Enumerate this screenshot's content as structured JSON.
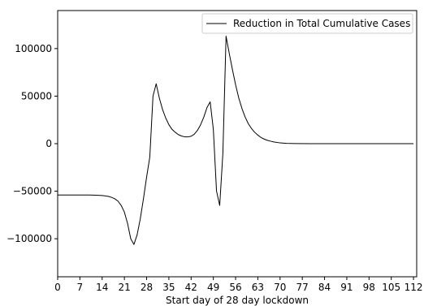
{
  "chart_data": {
    "type": "line",
    "title": "",
    "xlabel": "Start day of 28 day lockdown",
    "ylabel": "",
    "xlim": [
      0,
      113
    ],
    "ylim": [
      -140000,
      140000
    ],
    "grid": false,
    "legend": {
      "placement": "top-right"
    },
    "x_ticks": [
      0,
      7,
      14,
      21,
      28,
      35,
      42,
      49,
      56,
      63,
      70,
      77,
      84,
      91,
      98,
      105,
      112
    ],
    "y_ticks": [
      -100000,
      -50000,
      0,
      50000,
      100000
    ],
    "series": [
      {
        "name": "Reduction in Total Cumulative Cases",
        "color": "#000000",
        "x": [
          0,
          5,
          10,
          12,
          14,
          16,
          17,
          18,
          19,
          20,
          21,
          22,
          23,
          24,
          25,
          26,
          27,
          28,
          29,
          30,
          31,
          32,
          33,
          34,
          35,
          36,
          37,
          38,
          39,
          40,
          41,
          42,
          43,
          44,
          45,
          46,
          47,
          48,
          49,
          50,
          51,
          52,
          53,
          54,
          55,
          56,
          57,
          58,
          59,
          60,
          61,
          62,
          63,
          64,
          65,
          66,
          67,
          68,
          70,
          72,
          75,
          80,
          90,
          100,
          110,
          112
        ],
        "y": [
          -54000,
          -54000,
          -54000,
          -54200,
          -54500,
          -55500,
          -56500,
          -58000,
          -60500,
          -65000,
          -72000,
          -84000,
          -100000,
          -106000,
          -96000,
          -79000,
          -58000,
          -35000,
          -14000,
          50000,
          63000,
          48000,
          36000,
          27000,
          20000,
          15000,
          12000,
          9500,
          8000,
          7200,
          7100,
          7800,
          10000,
          14000,
          20000,
          28000,
          38000,
          44000,
          15000,
          -50000,
          -65000,
          -10000,
          113000,
          95000,
          78000,
          62000,
          48000,
          37000,
          28000,
          21000,
          16000,
          12000,
          9000,
          6500,
          4800,
          3500,
          2600,
          1800,
          800,
          300,
          100,
          0,
          0,
          0,
          0,
          0
        ]
      }
    ]
  }
}
